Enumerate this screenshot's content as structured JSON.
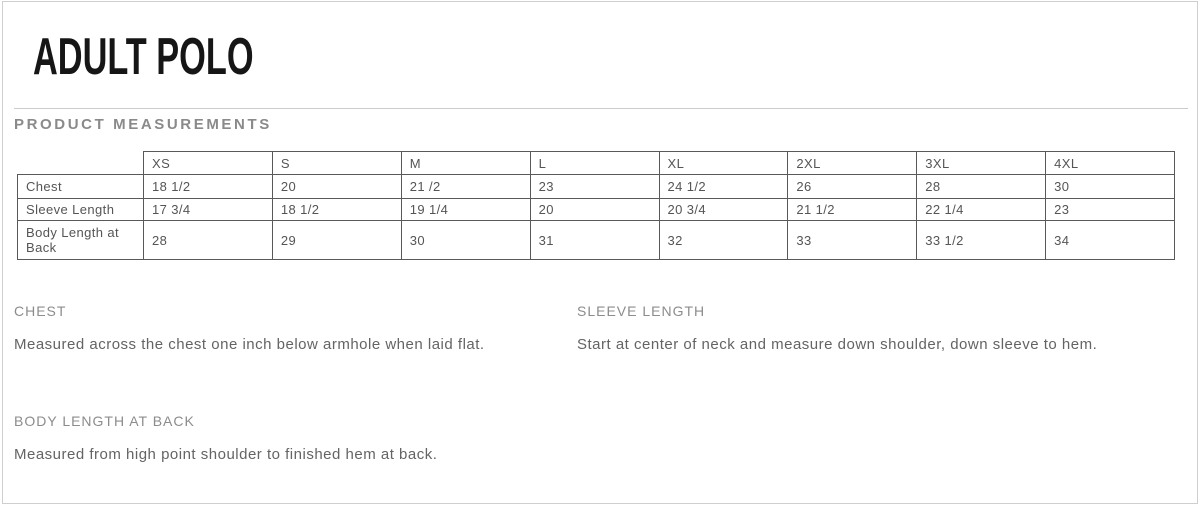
{
  "page": {
    "title": "ADULT POLO",
    "section_title": "PRODUCT MEASUREMENTS"
  },
  "size_table": {
    "columns": [
      "XS",
      "S",
      "M",
      "L",
      "XL",
      "2XL",
      "3XL",
      "4XL"
    ],
    "rows": [
      {
        "label": "Chest",
        "values": [
          "18 1/2",
          "20",
          "21 /2",
          "23",
          "24 1/2",
          "26",
          "28",
          "30"
        ]
      },
      {
        "label": "Sleeve Length",
        "values": [
          "17 3/4",
          "18 1/2",
          "19 1/4",
          "20",
          "20 3/4",
          "21 1/2",
          "22 1/4",
          "23"
        ]
      },
      {
        "label": "Body Length at Back",
        "values": [
          "28",
          "29",
          "30",
          "31",
          "32",
          "33",
          "33 1/2",
          "34"
        ]
      }
    ]
  },
  "definitions": [
    {
      "heading": "CHEST",
      "text": "Measured across the chest one inch below armhole when laid flat."
    },
    {
      "heading": "SLEEVE LENGTH",
      "text": "Start at center of neck and measure down shoulder, down sleeve to hem."
    },
    {
      "heading": "BODY LENGTH AT BACK",
      "text": "Measured from high point shoulder to finished hem at back."
    }
  ],
  "colors": {
    "title": "#161616",
    "section_title": "#8a8a8a",
    "table_border": "#595959",
    "table_text": "#555555",
    "definition_heading": "#8c8c8c",
    "definition_text": "#646464",
    "frame_border": "#cfcfcf"
  }
}
